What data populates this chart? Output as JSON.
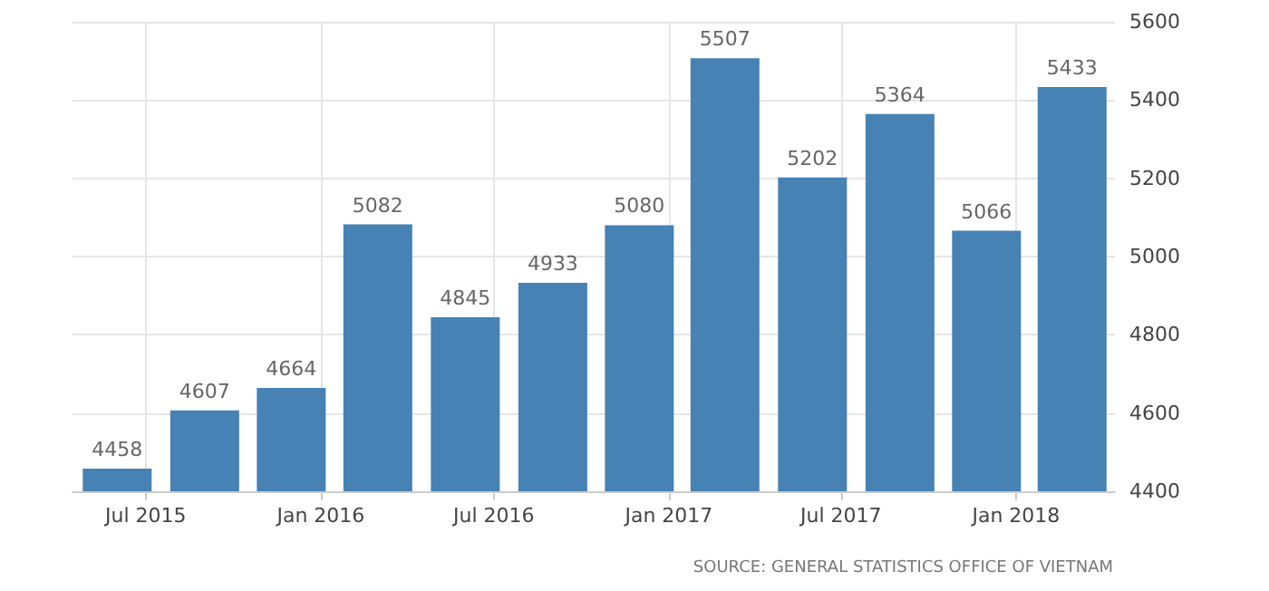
{
  "chart_data": {
    "type": "bar",
    "x": [
      "2015-06",
      "2015-09",
      "2015-12",
      "2016-03",
      "2016-06",
      "2016-09",
      "2016-12",
      "2017-03",
      "2017-06",
      "2017-09",
      "2017-12",
      "2018-03"
    ],
    "values": [
      4458,
      4607,
      4664,
      5082,
      4845,
      4933,
      5080,
      5507,
      5202,
      5364,
      5066,
      5433
    ],
    "color": "#4682b4",
    "data_labels": true,
    "xlim": [
      "2015-04-15",
      "2018-04-15"
    ],
    "xticks": [
      {
        "value": "2015-07",
        "label": "Jul 2015"
      },
      {
        "value": "2016-01",
        "label": "Jan 2016"
      },
      {
        "value": "2016-07",
        "label": "Jul 2016"
      },
      {
        "value": "2017-01",
        "label": "Jan 2017"
      },
      {
        "value": "2017-07",
        "label": "Jul 2017"
      },
      {
        "value": "2018-01",
        "label": "Jan 2018"
      }
    ],
    "ylim": [
      4400,
      5600
    ],
    "yticks": [
      4400,
      4600,
      4800,
      5000,
      5200,
      5400,
      5600
    ],
    "grid": true,
    "annotations": [
      "SOURCE: GENERAL STATISTICS OFFICE OF VIETNAM"
    ]
  }
}
